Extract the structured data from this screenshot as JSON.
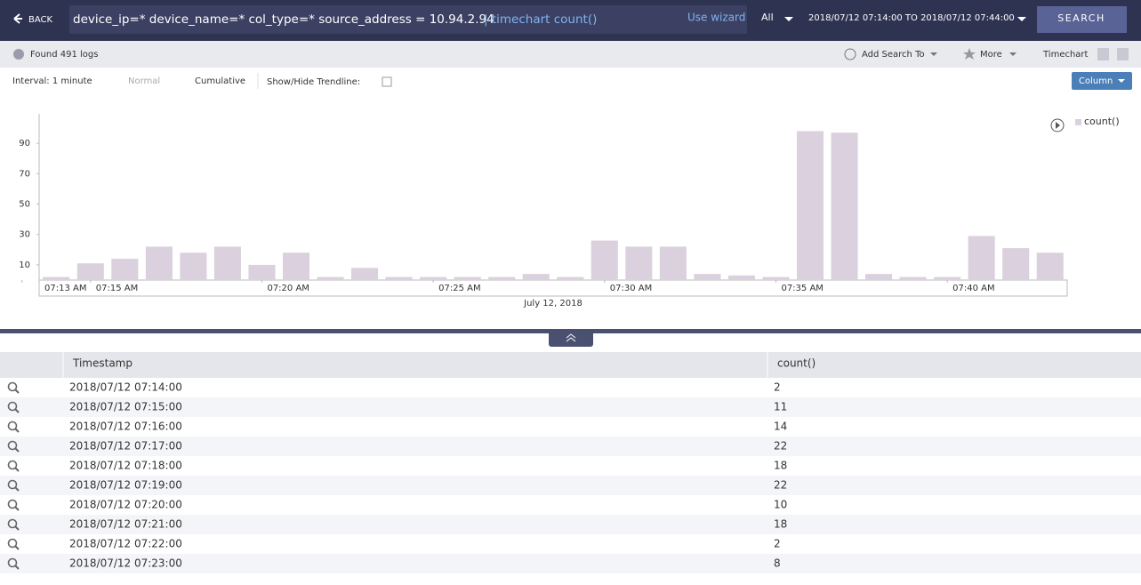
{
  "header": {
    "back": "BACK",
    "query": "device_ip=* device_name=* col_type=*  source_address = 10.94.2.94",
    "query_pipe": "| timechart count()",
    "wizard": "Use wizard",
    "scope": "All",
    "range": "2018/07/12 07:14:00 TO 2018/07/12 07:44:00",
    "search": "SEARCH"
  },
  "toolbar": {
    "found": "Found 491 logs",
    "add_search": "Add Search To",
    "more": "More",
    "view": "Timechart",
    "interval": "Interval: 1 minute",
    "normal": "Normal",
    "cumulative": "Cumulative",
    "trendline": "Show/Hide Trendline:",
    "chart_kind": "Column"
  },
  "chart_data": {
    "type": "bar",
    "x_label": "July 12, 2018",
    "x": [
      14,
      15,
      16,
      17,
      18,
      19,
      20,
      21,
      22,
      23,
      24,
      25,
      26,
      27,
      28,
      29,
      30,
      31,
      32,
      33,
      34,
      35,
      36,
      37,
      38,
      39,
      40,
      41,
      42,
      43
    ],
    "series": [
      {
        "name": "count()",
        "color": "#dbd0dd",
        "values": [
          2,
          11,
          14,
          22,
          18,
          22,
          10,
          18,
          2,
          8,
          2,
          2,
          2,
          2,
          4,
          2,
          26,
          22,
          22,
          4,
          3,
          2,
          98,
          97,
          4,
          2,
          2,
          29,
          21,
          18
        ]
      }
    ],
    "xlim": [
      13.5,
      43.5
    ],
    "xticks": [
      {
        "value": 13,
        "label": "07:13 AM"
      },
      {
        "value": 15,
        "label": "07:15 AM"
      },
      {
        "value": 20,
        "label": "07:20 AM"
      },
      {
        "value": 25,
        "label": "07:25 AM"
      },
      {
        "value": 30,
        "label": "07:30 AM"
      },
      {
        "value": 35,
        "label": "07:35 AM"
      },
      {
        "value": 40,
        "label": "07:40 AM"
      }
    ],
    "ylim": [
      0,
      110
    ],
    "yticks": [
      10,
      30,
      50,
      70,
      90
    ],
    "grid": false
  },
  "table": {
    "columns": [
      "Timestamp",
      "count()"
    ],
    "rows": [
      "2018/07/12 07:14:00",
      "2018/07/12 07:15:00",
      "2018/07/12 07:16:00",
      "2018/07/12 07:17:00",
      "2018/07/12 07:18:00",
      "2018/07/12 07:19:00",
      "2018/07/12 07:20:00",
      "2018/07/12 07:21:00",
      "2018/07/12 07:22:00",
      "2018/07/12 07:23:00"
    ]
  }
}
